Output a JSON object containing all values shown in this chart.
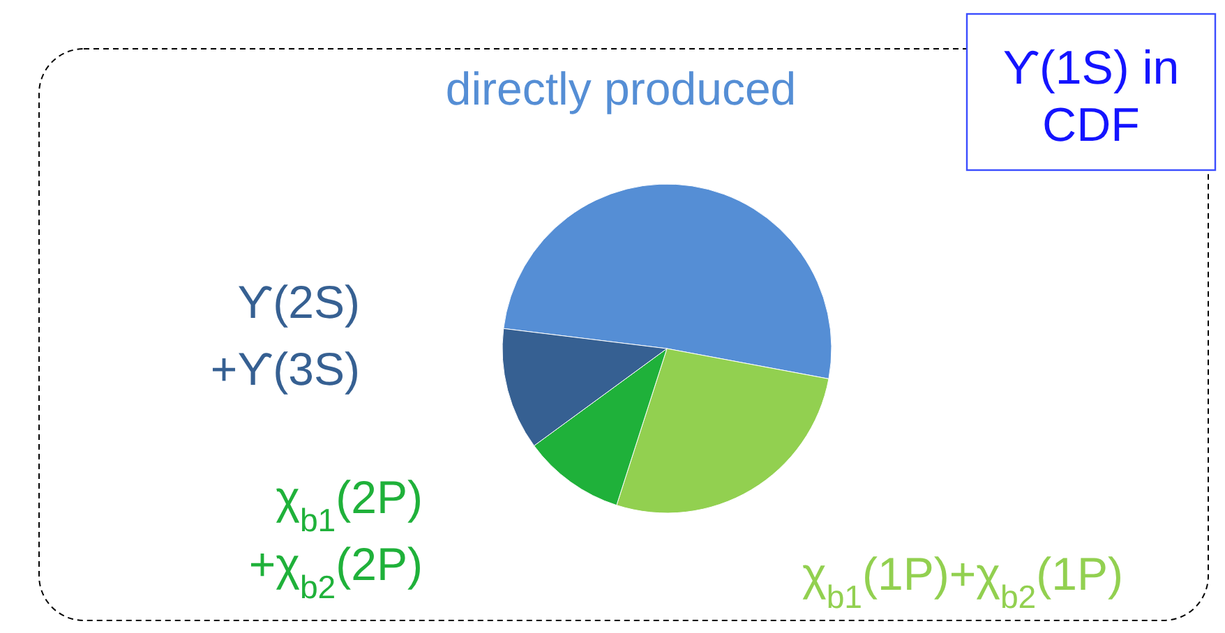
{
  "chart_data": {
    "type": "pie",
    "title": "ϒ(1S) in CDF",
    "categories": [
      "directly produced",
      "χ$_{b1}$(1P)+χ$_{b2}$(1P)",
      "χ$_{b1}$(2P)+χ$_{b2}$(2P)",
      "ϒ(2S)+ϒ(3S)"
    ],
    "values": [
      51,
      27,
      10,
      12
    ],
    "colors": [
      "#558ed5",
      "#92d050",
      "#1fb13a",
      "#366092"
    ]
  }
}
